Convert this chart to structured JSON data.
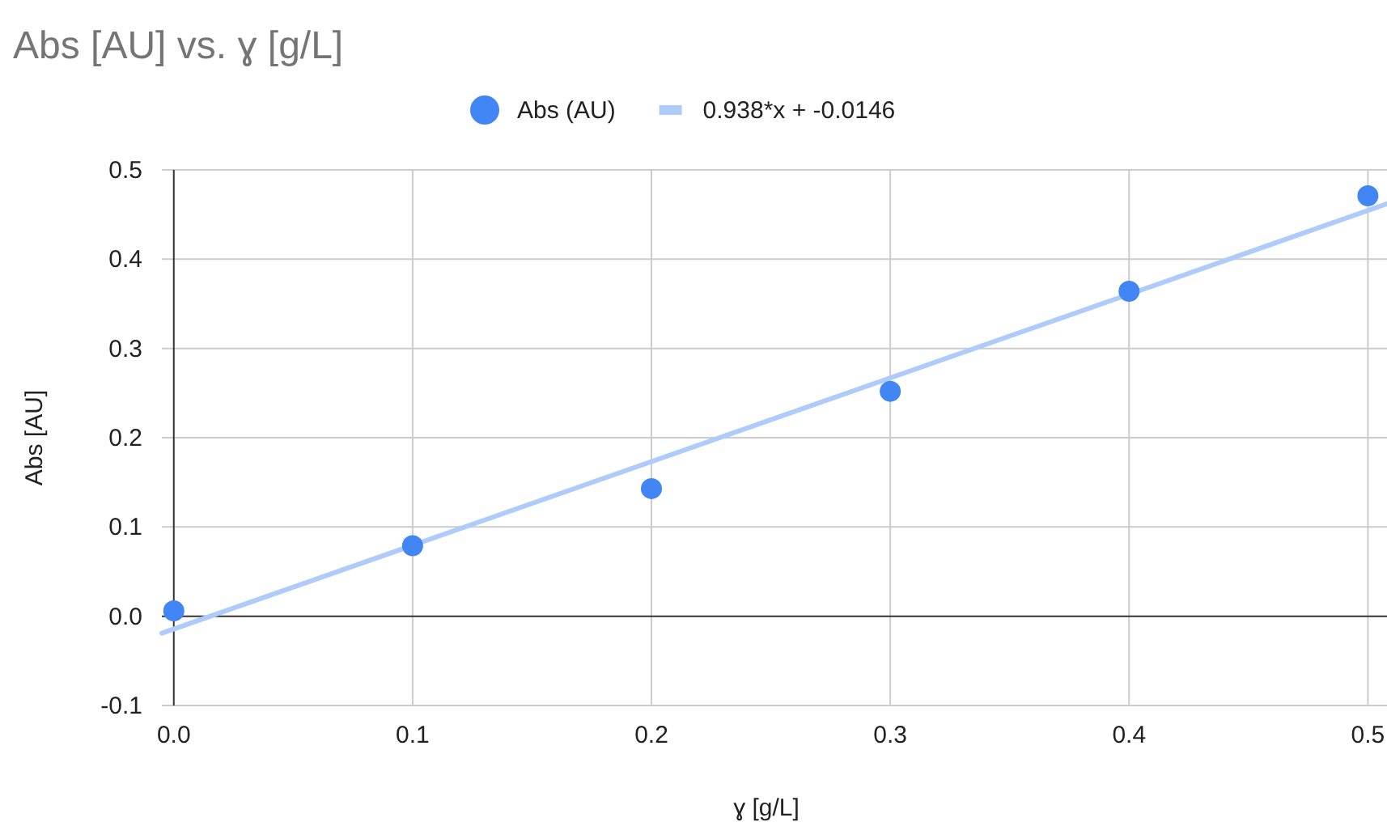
{
  "chart_data": {
    "type": "scatter",
    "title": "Abs [AU] vs. ɣ [g/L]",
    "xlabel": "ɣ [g/L]",
    "ylabel": "Abs [AU]",
    "x": [
      0,
      0.1,
      0.2,
      0.3,
      0.4,
      0.5
    ],
    "series": [
      {
        "name": "Abs (AU)",
        "color": "#4285f4",
        "marker": "circle",
        "values": [
          0.006,
          0.079,
          0.143,
          0.252,
          0.364,
          0.471
        ]
      },
      {
        "name": "0.938*x + -0.0146",
        "color": "#aecbfa",
        "type": "line",
        "x": [
          -0.005,
          0.508
        ],
        "values": [
          -0.019,
          0.462
        ]
      }
    ],
    "xlim": [
      -0.005,
      0.508
    ],
    "xticks": [
      {
        "value": 0,
        "label": "0.0"
      },
      0.1,
      0.2,
      0.3,
      0.4,
      0.5
    ],
    "ylim": [
      -0.1,
      0.5
    ],
    "yticks": [
      -0.1,
      {
        "value": 0,
        "label": "0.0"
      },
      0.1,
      0.2,
      0.3,
      0.4,
      0.5
    ],
    "grid": true,
    "legend": "top",
    "line_style": "solid"
  }
}
